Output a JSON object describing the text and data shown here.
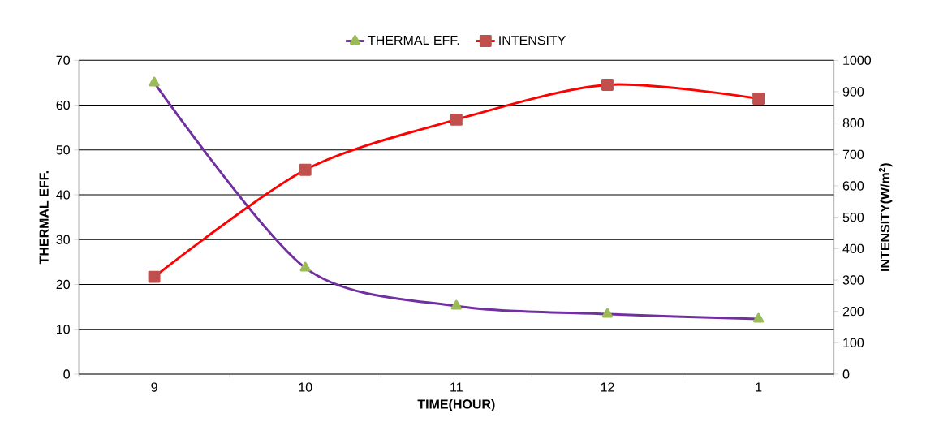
{
  "chart_data": {
    "type": "line",
    "xlabel": "TIME(HOUR)",
    "ylabel": "THERMAL EFF.",
    "y2label": "INTENSITY(W/m$^{2}$)",
    "categories": [
      "9",
      "10",
      "11",
      "12",
      "1"
    ],
    "series": [
      {
        "name": "THERMAL EFF.",
        "color": "#7030a0",
        "marker": "triangle",
        "values": [
          65,
          23.7,
          15.2,
          13.4,
          12.3
        ]
      },
      {
        "name": "INTENSITY",
        "color": "#ff0000",
        "marker": "square",
        "axis": "y2",
        "values": [
          310,
          651,
          811,
          922,
          878
        ]
      }
    ],
    "ylim": [
      0,
      70
    ],
    "yticks": [
      0,
      10,
      20,
      30,
      40,
      50,
      60,
      70
    ],
    "y2lim": [
      0,
      1000
    ],
    "y2ticks": [
      0,
      100,
      200,
      300,
      400,
      500,
      600,
      700,
      800,
      900,
      1000
    ],
    "grid": "y",
    "legend": "top"
  }
}
